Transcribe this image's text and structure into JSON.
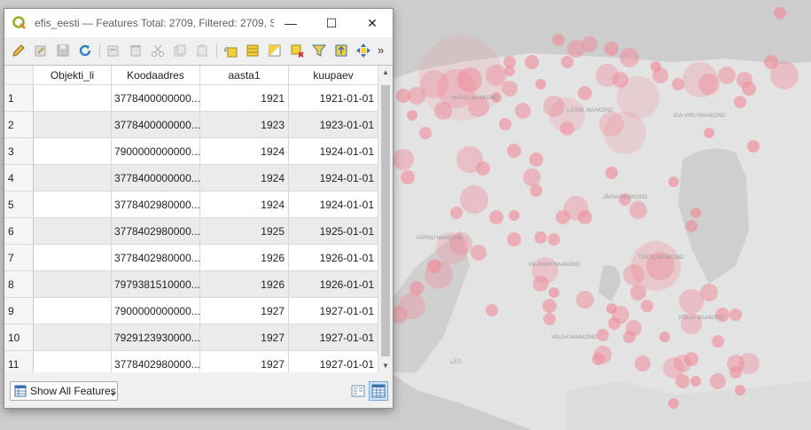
{
  "window": {
    "title": "efis_eesti — Features Total: 2709, Filtered: 2709, S...",
    "minimize_glyph": "—",
    "maximize_glyph": "☐",
    "close_glyph": "✕"
  },
  "toolbar": {
    "icons": [
      "pencil-icon",
      "multi-edit-icon",
      "save-edits-icon",
      "reload-icon",
      "add-feature-icon",
      "delete-feature-icon",
      "cut-icon",
      "copy-icon",
      "paste-icon",
      "expression-select-icon",
      "select-all-icon",
      "invert-selection-icon",
      "deselect-icon",
      "filter-icon",
      "move-to-top-icon",
      "pan-to-selection-icon"
    ],
    "more_glyph": "»"
  },
  "table": {
    "columns": [
      "Objekti_li",
      "Koodaadres",
      "aasta1",
      "kuupaev"
    ],
    "rows": [
      {
        "n": "1",
        "objekti": "",
        "kood": "3778400000000...",
        "aasta": "1921",
        "kuup": "1921-01-01"
      },
      {
        "n": "2",
        "objekti": "",
        "kood": "3778400000000...",
        "aasta": "1923",
        "kuup": "1923-01-01"
      },
      {
        "n": "3",
        "objekti": "",
        "kood": "7900000000000...",
        "aasta": "1924",
        "kuup": "1924-01-01"
      },
      {
        "n": "4",
        "objekti": "",
        "kood": "3778400000000...",
        "aasta": "1924",
        "kuup": "1924-01-01"
      },
      {
        "n": "5",
        "objekti": "",
        "kood": "3778402980000...",
        "aasta": "1924",
        "kuup": "1924-01-01"
      },
      {
        "n": "6",
        "objekti": "",
        "kood": "3778402980000...",
        "aasta": "1925",
        "kuup": "1925-01-01"
      },
      {
        "n": "7",
        "objekti": "",
        "kood": "3778402980000...",
        "aasta": "1926",
        "kuup": "1926-01-01"
      },
      {
        "n": "8",
        "objekti": "",
        "kood": "7979381510000...",
        "aasta": "1926",
        "kuup": "1926-01-01"
      },
      {
        "n": "9",
        "objekti": "",
        "kood": "7900000000000...",
        "aasta": "1927",
        "kuup": "1927-01-01"
      },
      {
        "n": "10",
        "objekti": "",
        "kood": "7929123930000...",
        "aasta": "1927",
        "kuup": "1927-01-01"
      },
      {
        "n": "11",
        "objekti": "",
        "kood": "3778402980000...",
        "aasta": "1927",
        "kuup": "1927-01-01"
      }
    ]
  },
  "bottom": {
    "show_all_label": "Show All Features"
  },
  "map": {
    "point_color": "#f08a9a",
    "labels": [
      "HARJU MAAKOND",
      "LÄÄNE MAAKOND",
      "JÄRVA MAAKOND",
      "VILJANDI MAAKOND",
      "TARTU MAAKOND",
      "PÕLVA MAAKOND",
      "VALGA MAAKOND",
      "IDA-VIRU MAAKOND",
      "PÄRNU MAAKOND",
      "LÄTI"
    ]
  },
  "colors": {
    "map_land": "#e2e2e2",
    "map_water": "#cfcfcf",
    "point": "#f08a9a"
  }
}
